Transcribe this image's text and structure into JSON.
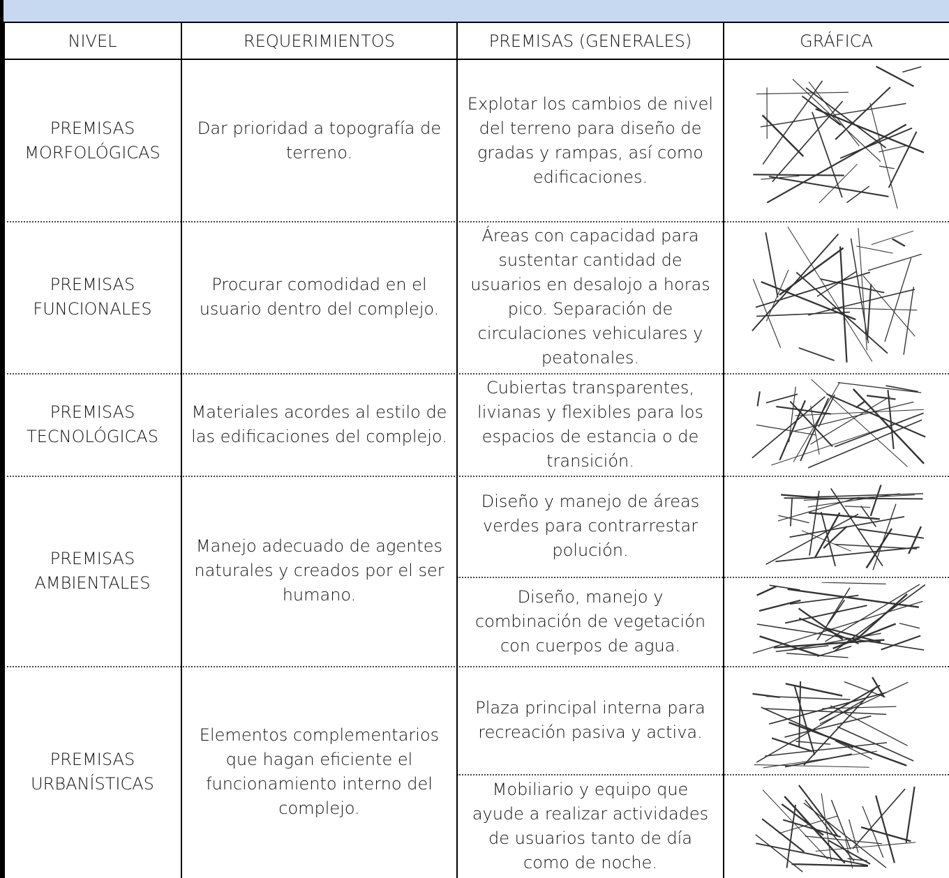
{
  "header": {
    "columns": [
      "NIVEL",
      "REQUERIMIENTOS",
      "PREMISAS (GENERALES)",
      "GRÁFICA"
    ]
  },
  "rows": [
    {
      "nivel": "PREMISAS MORFOLÓGICAS",
      "requerimientos": "Dar prioridad a topografía de terreno.",
      "premisas": [
        "Explotar los cambios de nivel del terreno para diseño de gradas y rampas, así como edificaciones."
      ]
    },
    {
      "nivel": "PREMISAS FUNCIONALES",
      "requerimientos": "Procurar comodidad en el usuario dentro del complejo.",
      "premisas": [
        "Áreas con capacidad para sustentar cantidad de usuarios en desalojo a horas pico. Separación de circulaciones vehiculares y peatonales."
      ]
    },
    {
      "nivel": "PREMISAS TECNOLÓGICAS",
      "requerimientos": "Materiales acordes al estilo de las edificaciones del complejo.",
      "premisas": [
        "Cubiertas transparentes, livianas y flexibles para los espacios de estancia o de transición."
      ]
    },
    {
      "nivel": "PREMISAS AMBIENTALES",
      "requerimientos": "Manejo adecuado de agentes naturales y creados por el ser humano.",
      "premisas": [
        "Diseño y manejo de áreas verdes para contrarrestar polución.",
        "Diseño, manejo y combinación de vegetación con cuerpos de agua."
      ]
    },
    {
      "nivel": "PREMISAS URBANÍSTICAS",
      "requerimientos": "Elementos complementarios que hagan eficiente el funcionamiento interno del complejo.",
      "premisas": [
        "Plaza principal interna para recreación pasiva y activa.",
        "Mobiliario y equipo que ayude a realizar actividades de usuarios tanto de día como de noche."
      ]
    }
  ]
}
